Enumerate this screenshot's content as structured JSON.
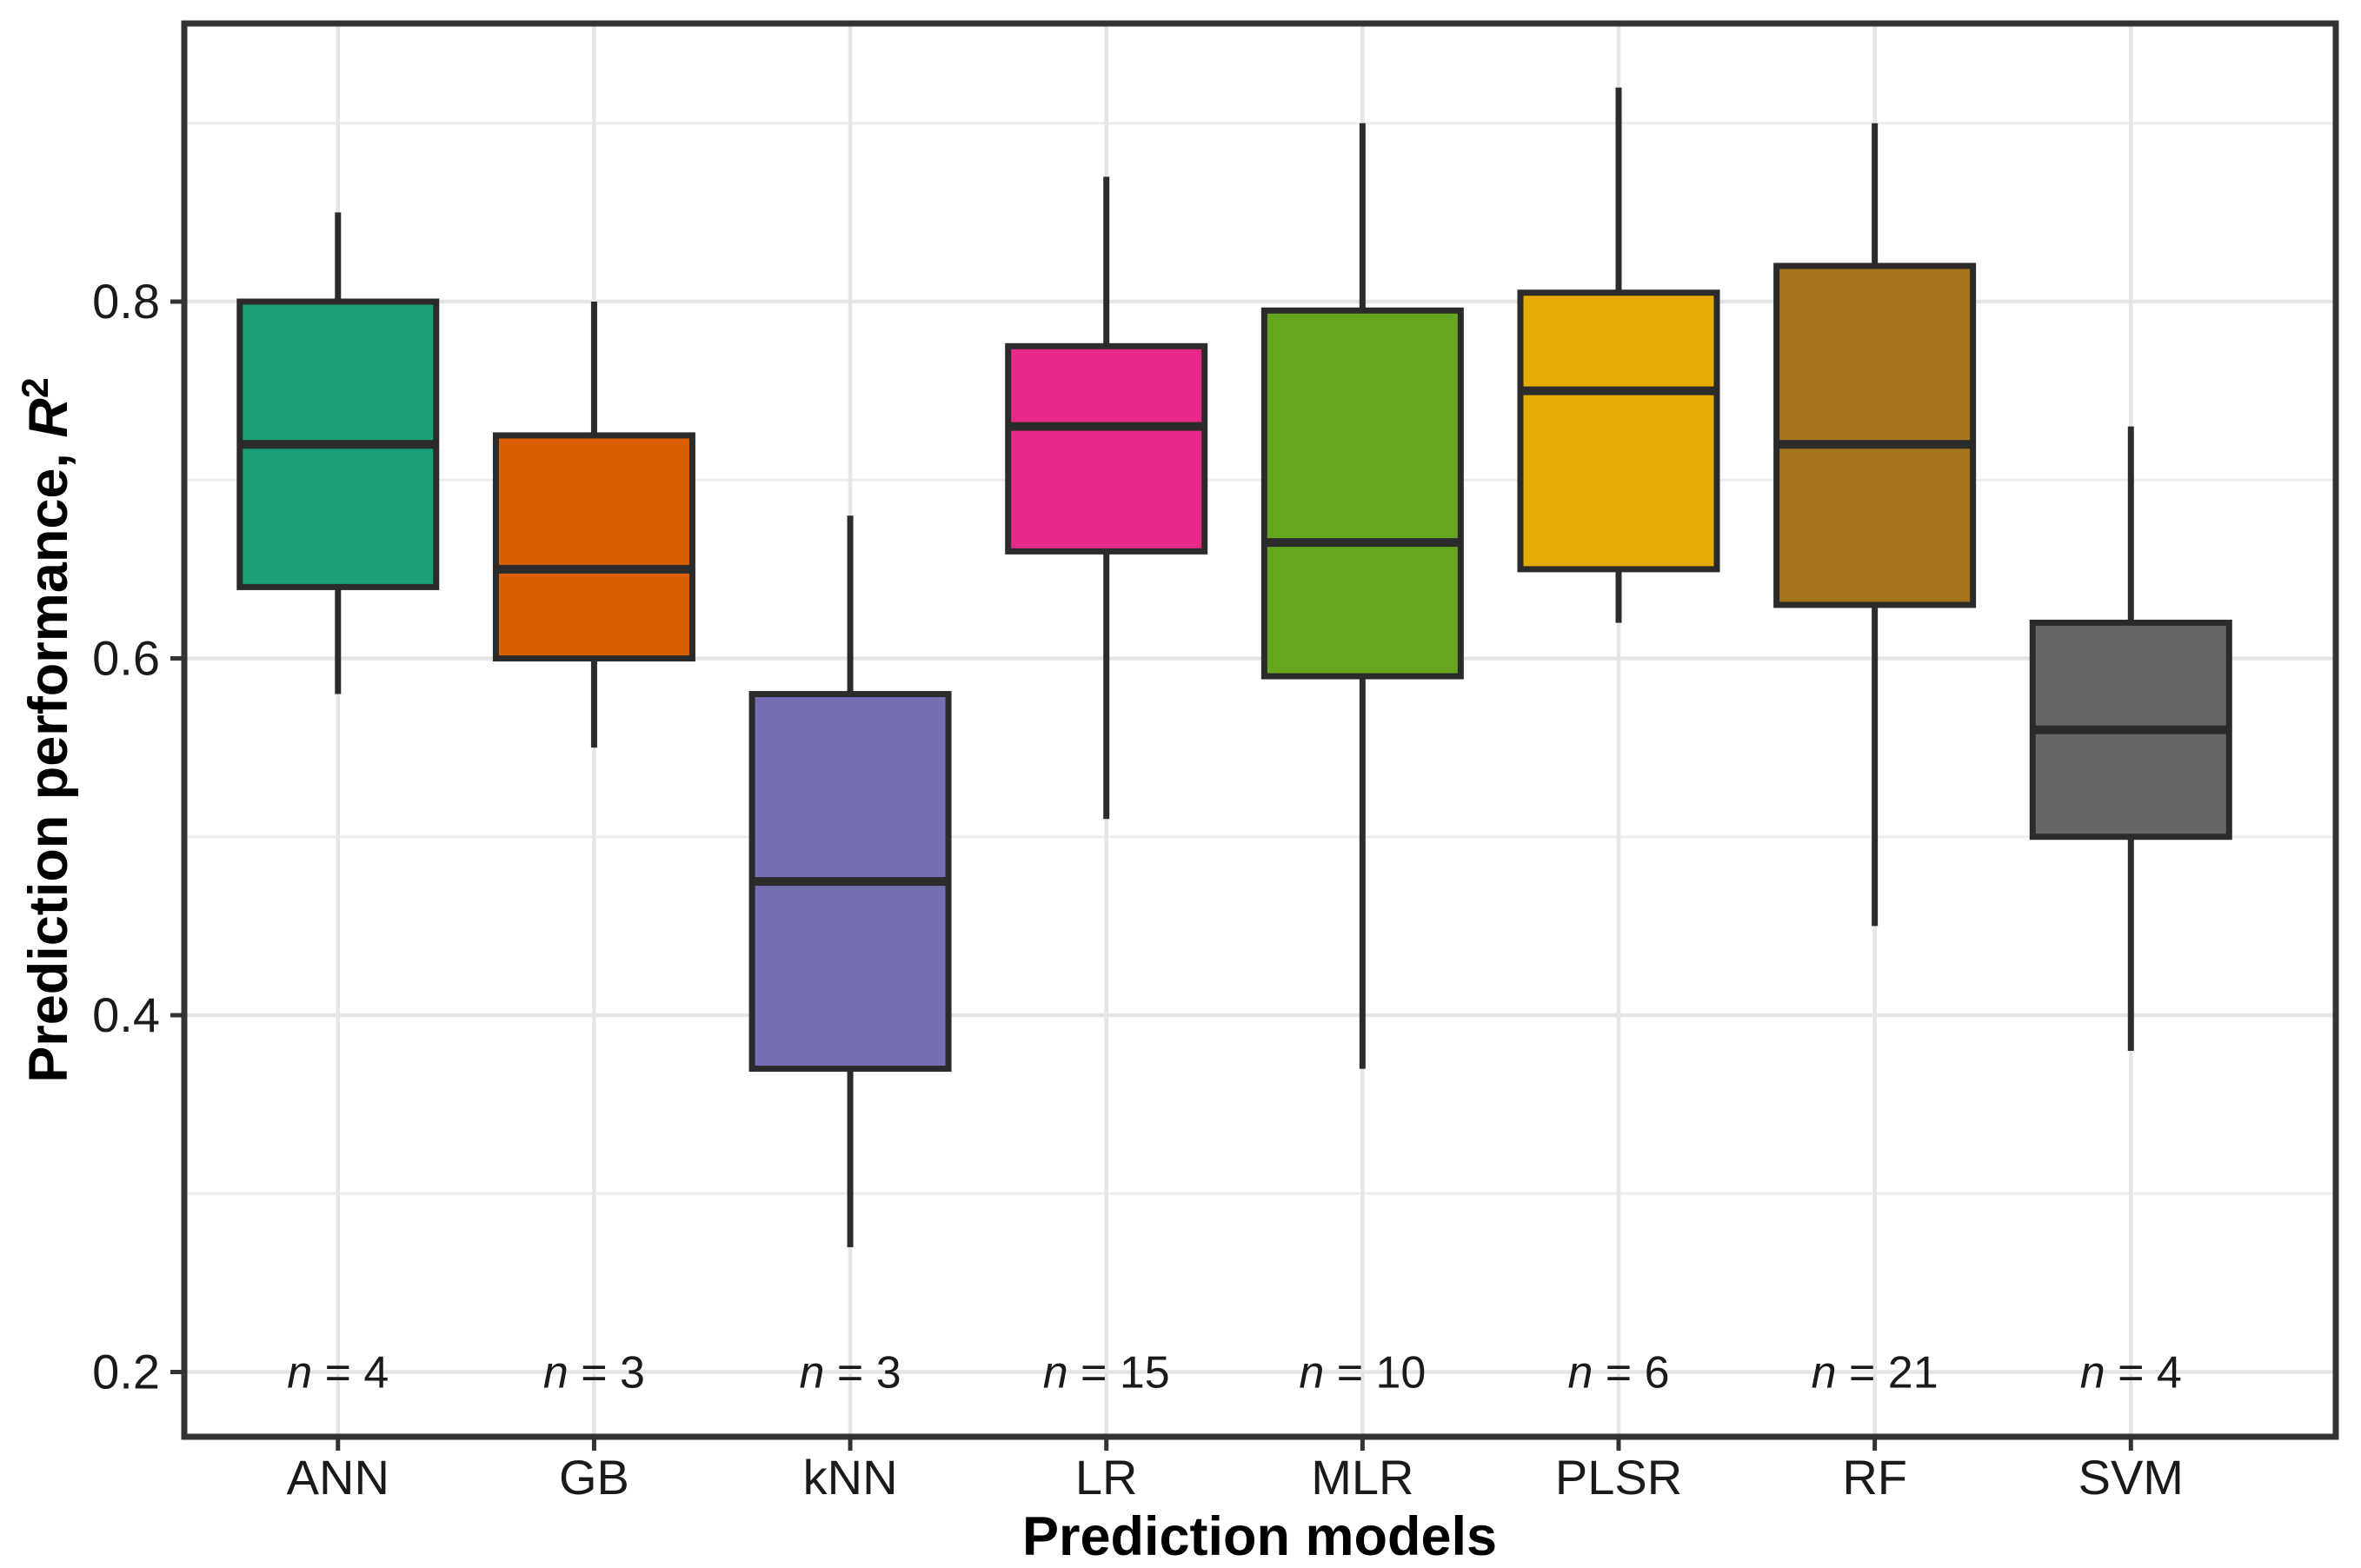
{
  "chart_data": {
    "type": "box",
    "title": "",
    "xlabel": "Prediction models",
    "ylabel": "Prediction performance, R^2",
    "ylabel_prefix": "Prediction performance, ",
    "ylabel_math": "R",
    "ylabel_sup": "2",
    "categories": [
      "ANN",
      "GB",
      "kNN",
      "LR",
      "MLR",
      "PLSR",
      "RF",
      "SVM"
    ],
    "n_prefix": "n",
    "n_equals": " = ",
    "sample_sizes": [
      4,
      3,
      3,
      15,
      10,
      6,
      21,
      4
    ],
    "n_labels": [
      "n = 4",
      "n = 3",
      "n = 3",
      "n = 15",
      "n = 10",
      "n = 6",
      "n = 21",
      "n = 4"
    ],
    "n_label_value_position": 0.2,
    "y_major_ticks": [
      0.2,
      0.4,
      0.6,
      0.8
    ],
    "y_major_tick_labels": [
      "0.2",
      "0.4",
      "0.6",
      "0.8"
    ],
    "y_minor_gridlines": [
      0.3,
      0.5,
      0.7,
      0.9
    ],
    "ylim": [
      0.164,
      0.956
    ],
    "grid": "on",
    "legend": "none",
    "series": [
      {
        "name": "ANN",
        "min": 0.58,
        "q1": 0.64,
        "median": 0.72,
        "q3": 0.8,
        "max": 0.85,
        "n": 4,
        "color": "#1B9E77"
      },
      {
        "name": "GB",
        "min": 0.55,
        "q1": 0.6,
        "median": 0.65,
        "q3": 0.725,
        "max": 0.8,
        "n": 3,
        "color": "#D95F02"
      },
      {
        "name": "kNN",
        "min": 0.27,
        "q1": 0.37,
        "median": 0.475,
        "q3": 0.58,
        "max": 0.68,
        "n": 3,
        "color": "#7570B3"
      },
      {
        "name": "LR",
        "min": 0.51,
        "q1": 0.66,
        "median": 0.73,
        "q3": 0.775,
        "max": 0.87,
        "n": 15,
        "color": "#E7298A"
      },
      {
        "name": "MLR",
        "min": 0.37,
        "q1": 0.59,
        "median": 0.665,
        "q3": 0.795,
        "max": 0.9,
        "n": 10,
        "color": "#66A61E"
      },
      {
        "name": "PLSR",
        "min": 0.62,
        "q1": 0.65,
        "median": 0.75,
        "q3": 0.805,
        "max": 0.92,
        "n": 6,
        "color": "#E6AB02"
      },
      {
        "name": "RF",
        "min": 0.45,
        "q1": 0.63,
        "median": 0.72,
        "q3": 0.82,
        "max": 0.9,
        "n": 21,
        "color": "#A6761D"
      },
      {
        "name": "SVM",
        "min": 0.38,
        "q1": 0.5,
        "median": 0.56,
        "q3": 0.62,
        "max": 0.73,
        "n": 4,
        "color": "#666666"
      }
    ],
    "colors": {
      "panel_border": "#333333",
      "box_stroke": "#2b2b2b",
      "whisker_stroke": "#2b2b2b",
      "major_grid": "#e5e5e5",
      "minor_grid": "#ededed",
      "tick_mark": "#333333",
      "tick_label": "#1a1a1a",
      "n_label": "#1a1a1a",
      "background": "#ffffff"
    }
  }
}
